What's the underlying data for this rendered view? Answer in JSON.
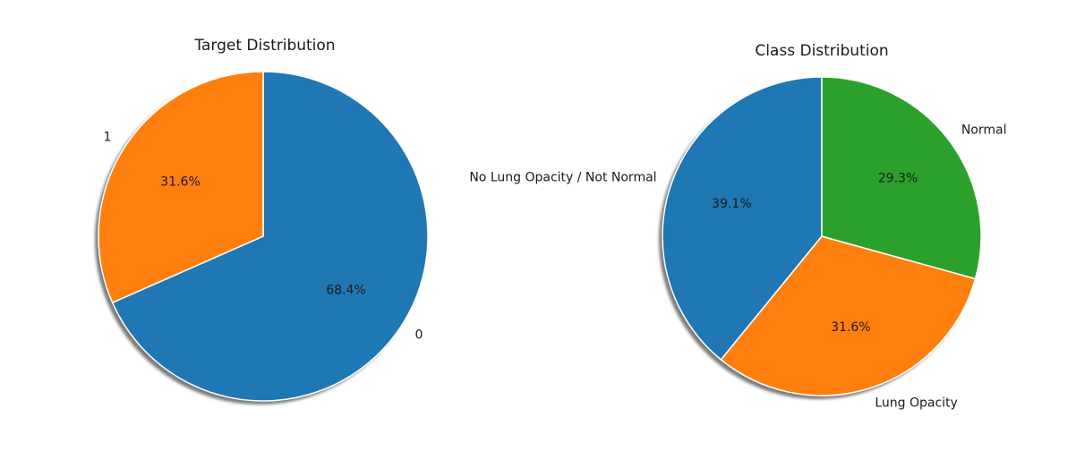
{
  "chart_data": [
    {
      "type": "pie",
      "title": "Target Distribution",
      "labels": [
        "0",
        "1"
      ],
      "values": [
        68.4,
        31.6
      ],
      "autopct": [
        "68.4%",
        "31.6%"
      ],
      "colors": [
        "#1f77b4",
        "#ff7f0e"
      ],
      "start_angle_deg": 90,
      "direction": "clockwise",
      "shadow": true
    },
    {
      "type": "pie",
      "title": "Class Distribution",
      "labels": [
        "No Lung Opacity / Not Normal",
        "Lung Opacity",
        "Normal"
      ],
      "values": [
        39.1,
        31.6,
        29.3
      ],
      "autopct": [
        "39.1%",
        "31.6%",
        "29.3%"
      ],
      "colors": [
        "#1f77b4",
        "#ff7f0e",
        "#2ca02c"
      ],
      "start_angle_deg": 90,
      "direction": "counterclockwise",
      "shadow": true
    }
  ]
}
